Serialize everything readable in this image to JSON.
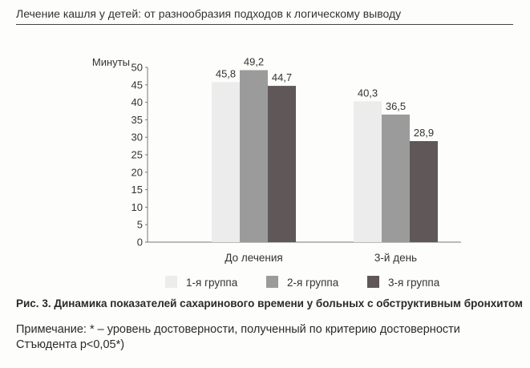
{
  "header": {
    "running_title": "Лечение кашля у детей: от разнообразия подходов к логическому выводу"
  },
  "chart_data": {
    "type": "bar",
    "ylabel": "Минуты",
    "ylim": [
      0,
      50
    ],
    "yticks": [
      0,
      5,
      10,
      15,
      20,
      25,
      30,
      35,
      40,
      45,
      50
    ],
    "zero_tick_label": "0",
    "categories": [
      "До лечения",
      "3-й день"
    ],
    "series": [
      {
        "name": "1-я группа",
        "values": [
          45.8,
          40.3
        ],
        "labels": [
          "45,8",
          "40,3"
        ],
        "color": "#ececec"
      },
      {
        "name": "2-я группа",
        "values": [
          49.2,
          36.5
        ],
        "labels": [
          "49,2",
          "36,5"
        ],
        "color": "#9b9b9b"
      },
      {
        "name": "3-я группа",
        "values": [
          44.7,
          28.9
        ],
        "labels": [
          "44,7",
          "28,9"
        ],
        "color": "#5f5758"
      }
    ],
    "legend_position": "bottom",
    "grid": false
  },
  "caption": "Рис. 3. Динамика показателей сахаринового времени у больных с обструктивным бронхитом",
  "note": "Примечание: * – уровень достоверности, полученный по критерию достоверности Стъюдента p<0,05*)"
}
